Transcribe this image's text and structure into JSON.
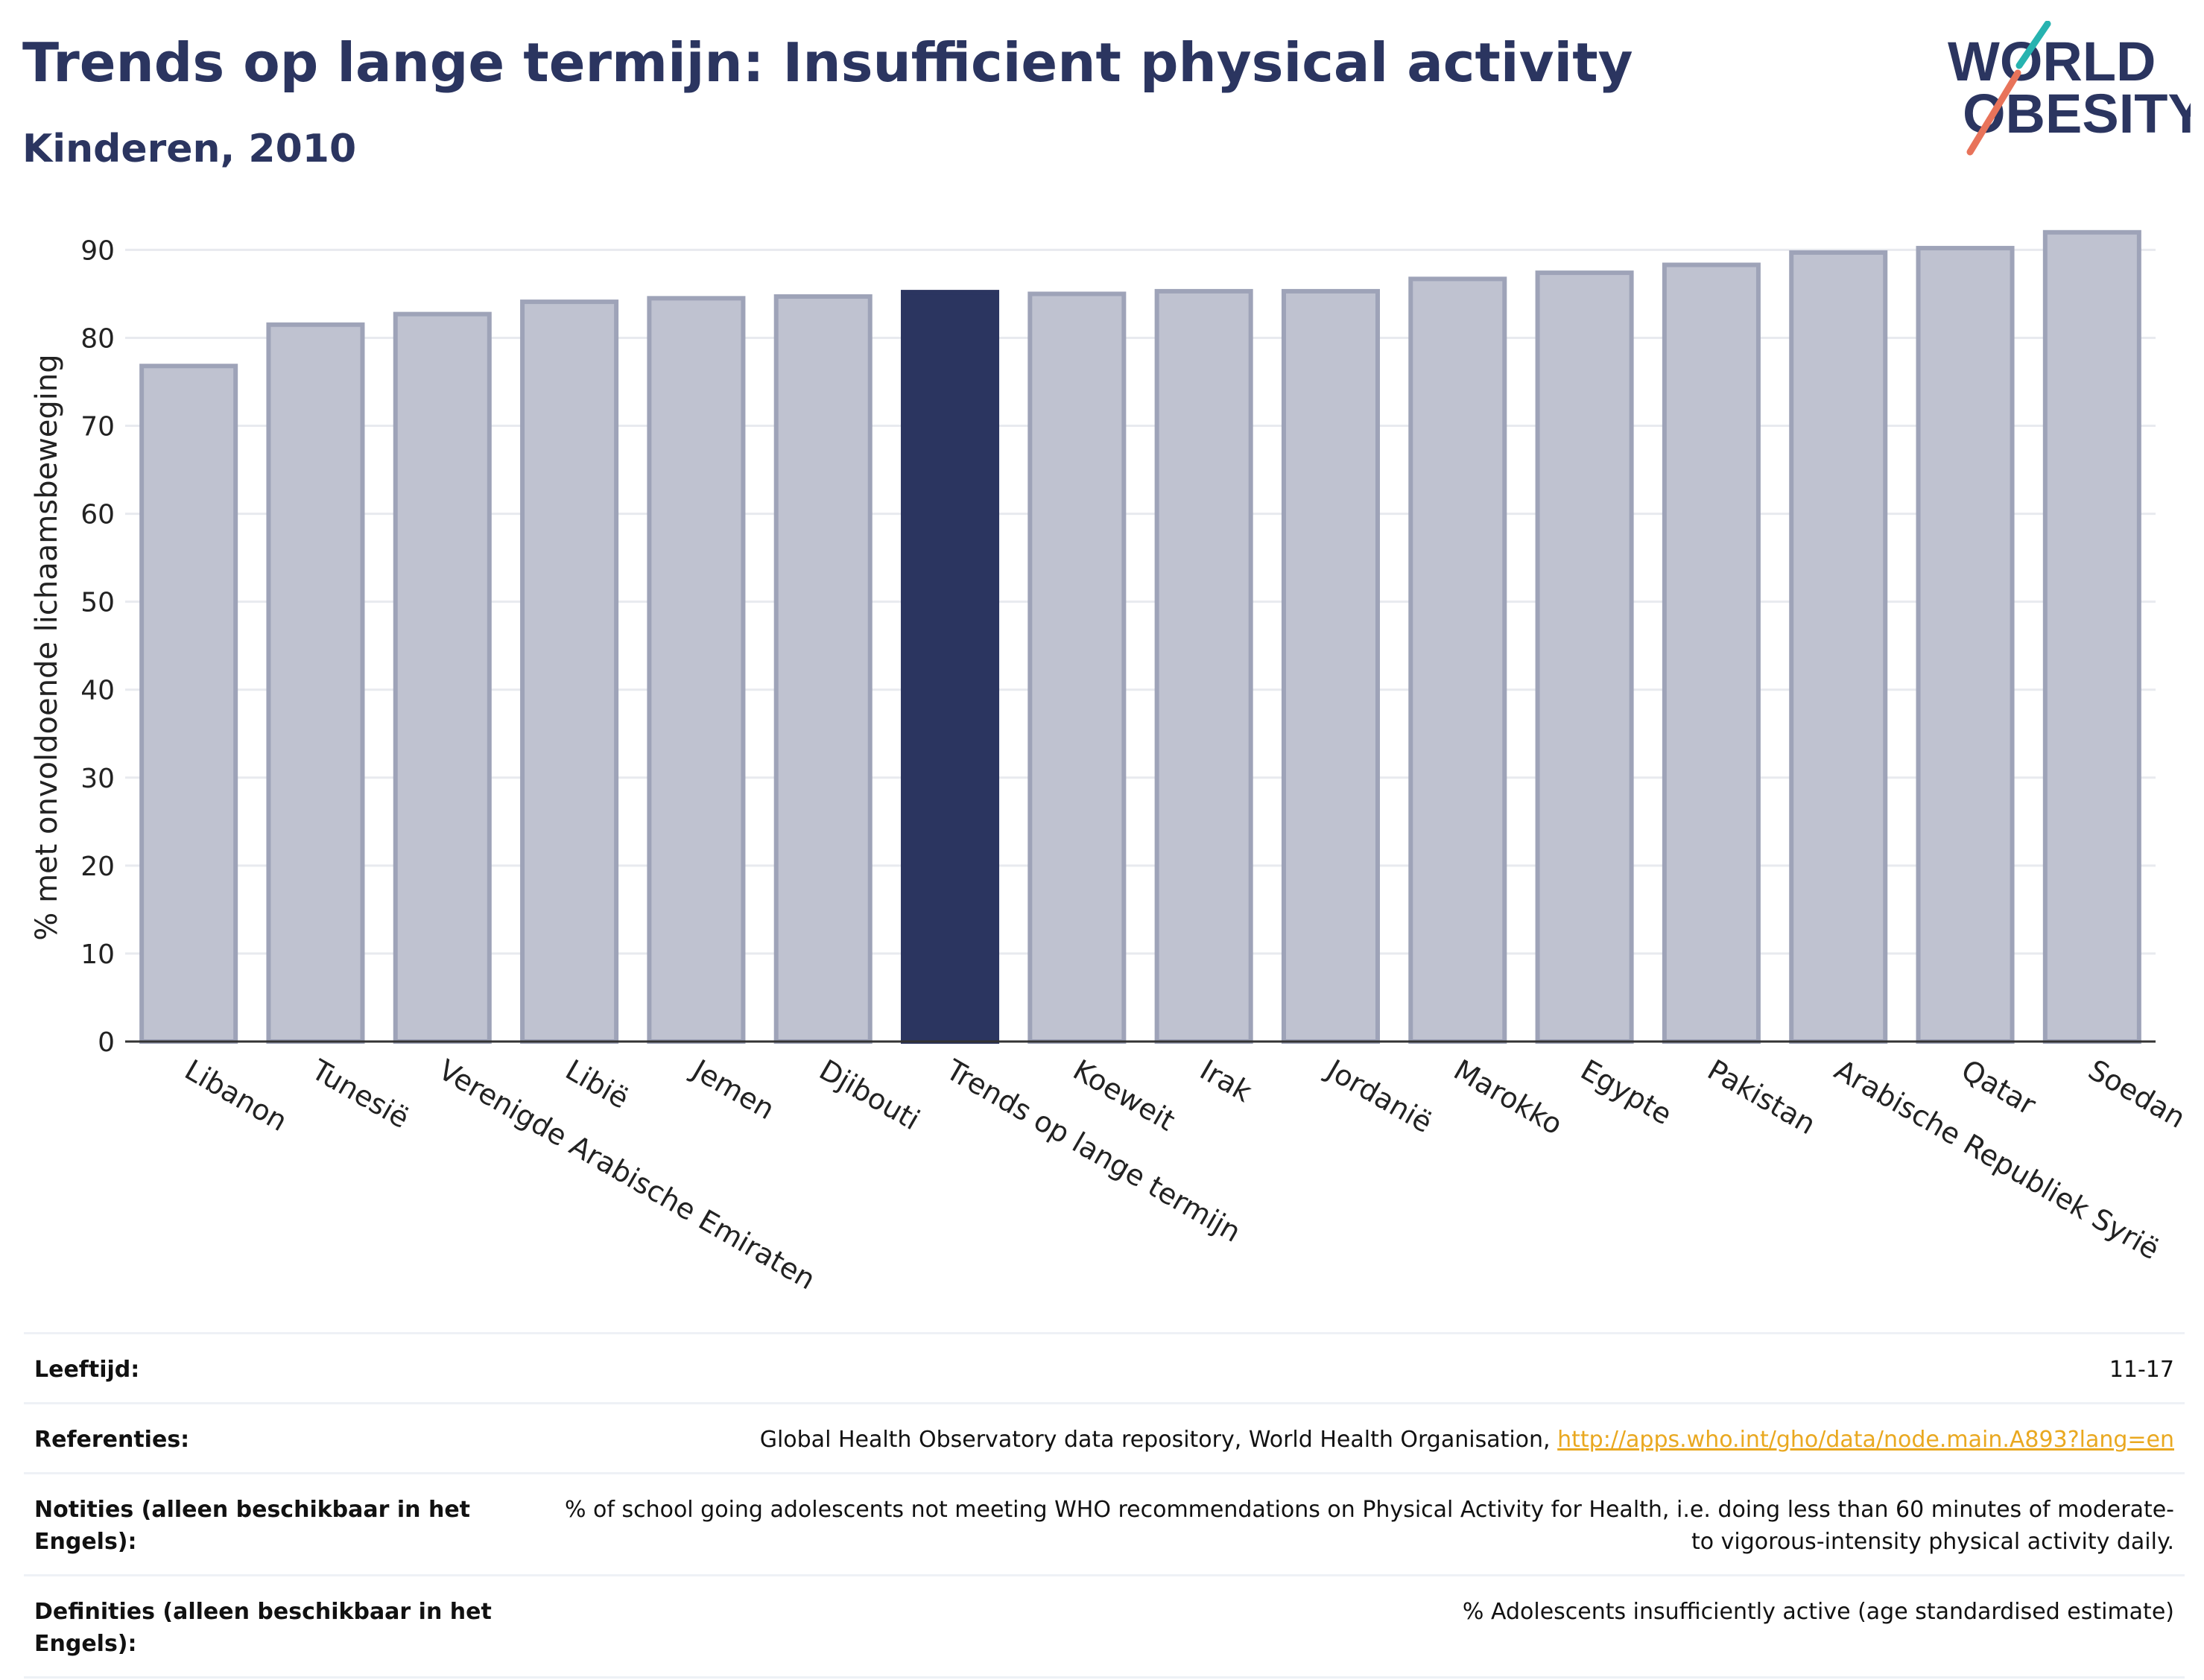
{
  "title": "Trends op lange termijn: Insufficient physical activity",
  "subtitle": "Kinderen, 2010",
  "logo": {
    "line1": "WORLD",
    "line2": "OBESITY"
  },
  "colors": {
    "bar": "#bfc2d0",
    "bar_stroke": "#9ea3b8",
    "highlight": "#2b3560",
    "grid": "#e8eaef",
    "axis": "#333333",
    "text": "#2b3560",
    "link": "#e9a820"
  },
  "chart_data": {
    "type": "bar",
    "ylabel": "% met onvoldoende lichaamsbeweging",
    "xlabel": "",
    "ylim": [
      0,
      93
    ],
    "yticks": [
      0,
      10,
      20,
      30,
      40,
      50,
      60,
      70,
      80,
      90
    ],
    "grid": true,
    "highlight": "Trends op lange termijn",
    "categories": [
      "Libanon",
      "Tunesië",
      "Verenigde Arabische Emiraten",
      "Libië",
      "Jemen",
      "Djibouti",
      "Trends op lange termijn",
      "Koeweit",
      "Irak",
      "Jordanië",
      "Marokko",
      "Egypte",
      "Pakistan",
      "Arabische Republiek Syrië",
      "Qatar",
      "Soedan"
    ],
    "values": [
      76.8,
      81.5,
      82.7,
      84.1,
      84.5,
      84.7,
      85.2,
      85.0,
      85.3,
      85.3,
      86.7,
      87.4,
      88.3,
      89.7,
      90.2,
      92.0
    ]
  },
  "notes": {
    "age_label": "Leeftijd:",
    "age_value": "11-17",
    "refs_label": "Referenties:",
    "refs_text": "Global Health Observatory data repository, World Health Organisation,",
    "refs_link": "http://apps.who.int/gho/data/node.main.A893?lang=en",
    "notities_label": "Notities (alleen beschikbaar in het Engels):",
    "notities_value": "% of school going adolescents not meeting WHO recommendations on Physical Activity for Health, i.e. doing less than 60 minutes of moderate- to vigorous-intensity physical activity daily.",
    "definities_label": "Definities (alleen beschikbaar in het Engels):",
    "definities_value": "% Adolescents insufficiently active (age standardised estimate)"
  }
}
